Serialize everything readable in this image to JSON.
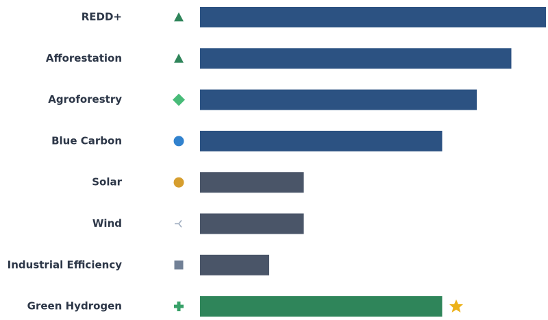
{
  "chart_data": {
    "type": "barh",
    "categories": [
      "REDD+",
      "Afforestation",
      "Agroforestry",
      "Blue Carbon",
      "Solar",
      "Wind",
      "Industrial Efficiency",
      "Green Hydrogen"
    ],
    "values": [
      10,
      9,
      8,
      7,
      3,
      3,
      2,
      7
    ],
    "colors": [
      "#2c5282",
      "#2c5282",
      "#2c5282",
      "#2c5282",
      "#4a5568",
      "#4a5568",
      "#4a5568",
      "#2f855a"
    ],
    "markers": [
      "triangle",
      "triangle",
      "diamond",
      "circle",
      "circle",
      "tri-left",
      "square",
      "plus"
    ],
    "marker_colors": [
      "#2f855a",
      "#2f855a",
      "#48bb78",
      "#3182ce",
      "#d69e2e",
      "#a0aec0",
      "#718096",
      "#38a169"
    ],
    "xlim": [
      0,
      10
    ]
  }
}
